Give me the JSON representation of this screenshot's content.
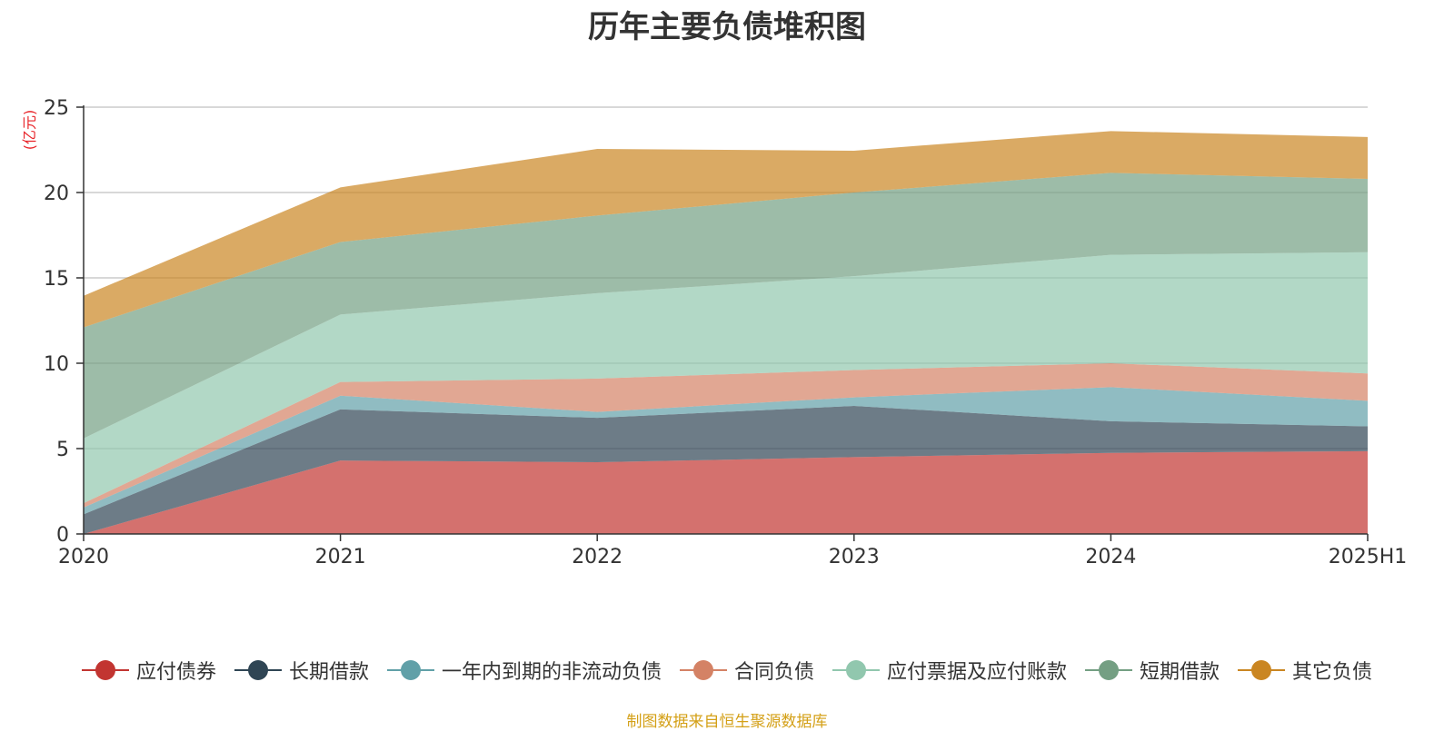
{
  "chart_data": {
    "type": "area",
    "stacked": true,
    "title": "历年主要负债堆积图",
    "ylabel": "(亿元)",
    "xlabel": "",
    "categories": [
      "2020",
      "2021",
      "2022",
      "2023",
      "2024",
      "2025H1"
    ],
    "ylim": [
      0,
      25
    ],
    "yticks": [
      0,
      5,
      10,
      15,
      20,
      25
    ],
    "grid": true,
    "legend_position": "bottom",
    "series": [
      {
        "name": "应付债券",
        "color": "#c23531",
        "values": [
          0,
          4.3,
          4.2,
          4.5,
          4.75,
          4.85
        ]
      },
      {
        "name": "长期借款",
        "color": "#2f4554",
        "values": [
          1.15,
          3.0,
          2.6,
          3.0,
          1.85,
          1.45
        ]
      },
      {
        "name": "一年内到期的非流动负债",
        "color": "#61a0a8",
        "values": [
          0.4,
          0.8,
          0.35,
          0.5,
          2.0,
          1.5
        ]
      },
      {
        "name": "合同负债",
        "color": "#d48265",
        "values": [
          0.25,
          0.8,
          1.95,
          1.6,
          1.4,
          1.6
        ]
      },
      {
        "name": "应付票据及应付账款",
        "color": "#91c7ae",
        "values": [
          3.8,
          3.95,
          5.0,
          5.5,
          6.35,
          7.1
        ]
      },
      {
        "name": "短期借款",
        "color": "#749f83",
        "values": [
          6.5,
          4.25,
          4.55,
          4.9,
          4.8,
          4.3
        ]
      },
      {
        "name": "其它负债",
        "color": "#ca8622",
        "values": [
          1.85,
          3.2,
          3.9,
          2.45,
          2.45,
          2.45
        ]
      }
    ]
  },
  "source_note": "制图数据来自恒生聚源数据库"
}
